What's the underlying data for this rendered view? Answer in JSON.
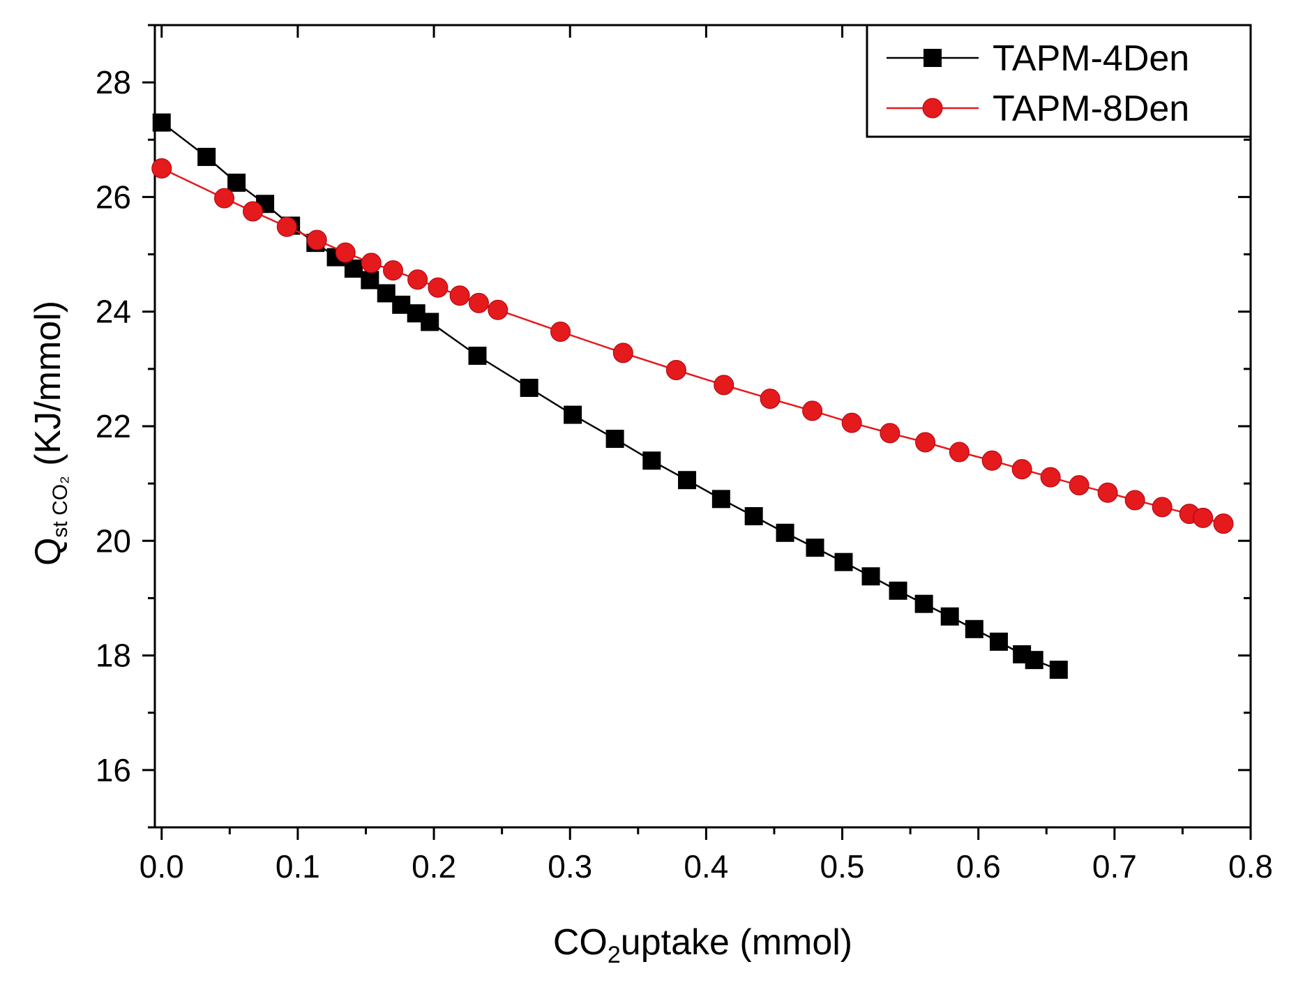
{
  "chart_data": {
    "type": "line",
    "xlabel": {
      "main": "CO",
      "sub": "2",
      "rest": "uptake (mmol)"
    },
    "ylabel": {
      "main": "Q",
      "sub": "st CO₂",
      "rest": " (KJ/mmol)"
    },
    "xlim": [
      -0.005,
      0.8
    ],
    "ylim": [
      15.0,
      29.0
    ],
    "xticks": [
      0.0,
      0.1,
      0.2,
      0.3,
      0.4,
      0.5,
      0.6,
      0.7,
      0.8
    ],
    "xtick_labels": [
      "0.0",
      "0.1",
      "0.2",
      "0.3",
      "0.4",
      "0.5",
      "0.6",
      "0.7",
      "0.8"
    ],
    "yticks": [
      16,
      18,
      20,
      22,
      24,
      26,
      28
    ],
    "ytick_labels": [
      "16",
      "18",
      "20",
      "22",
      "24",
      "26",
      "28"
    ],
    "grid": false,
    "legend_position": "top-right",
    "series": [
      {
        "name": "TAPM-4Den",
        "color": "#000000",
        "marker": "square",
        "x": [
          0.0,
          0.033,
          0.055,
          0.076,
          0.095,
          0.113,
          0.128,
          0.141,
          0.153,
          0.165,
          0.176,
          0.187,
          0.197,
          0.232,
          0.27,
          0.302,
          0.333,
          0.36,
          0.386,
          0.411,
          0.435,
          0.458,
          0.48,
          0.501,
          0.521,
          0.541,
          0.56,
          0.579,
          0.597,
          0.615,
          0.632,
          0.641,
          0.659
        ],
        "y": [
          27.3,
          26.7,
          26.25,
          25.88,
          25.5,
          25.2,
          24.95,
          24.75,
          24.55,
          24.32,
          24.12,
          23.97,
          23.82,
          23.23,
          22.67,
          22.2,
          21.78,
          21.4,
          21.06,
          20.73,
          20.43,
          20.14,
          19.88,
          19.63,
          19.38,
          19.13,
          18.9,
          18.68,
          18.46,
          18.24,
          18.02,
          17.92,
          17.75
        ]
      },
      {
        "name": "TAPM-8Den",
        "color": "#e41a1c",
        "marker": "circle",
        "x": [
          0.0,
          0.046,
          0.067,
          0.092,
          0.114,
          0.135,
          0.154,
          0.17,
          0.188,
          0.203,
          0.219,
          0.233,
          0.247,
          0.293,
          0.339,
          0.378,
          0.413,
          0.447,
          0.478,
          0.507,
          0.535,
          0.561,
          0.586,
          0.61,
          0.632,
          0.653,
          0.674,
          0.695,
          0.715,
          0.735,
          0.755,
          0.765,
          0.78
        ],
        "y": [
          26.5,
          25.98,
          25.75,
          25.48,
          25.25,
          25.03,
          24.85,
          24.72,
          24.56,
          24.42,
          24.28,
          24.15,
          24.03,
          23.65,
          23.28,
          22.98,
          22.72,
          22.48,
          22.27,
          22.06,
          21.88,
          21.72,
          21.55,
          21.4,
          21.25,
          21.11,
          20.97,
          20.84,
          20.71,
          20.59,
          20.47,
          20.4,
          20.3
        ]
      }
    ]
  }
}
